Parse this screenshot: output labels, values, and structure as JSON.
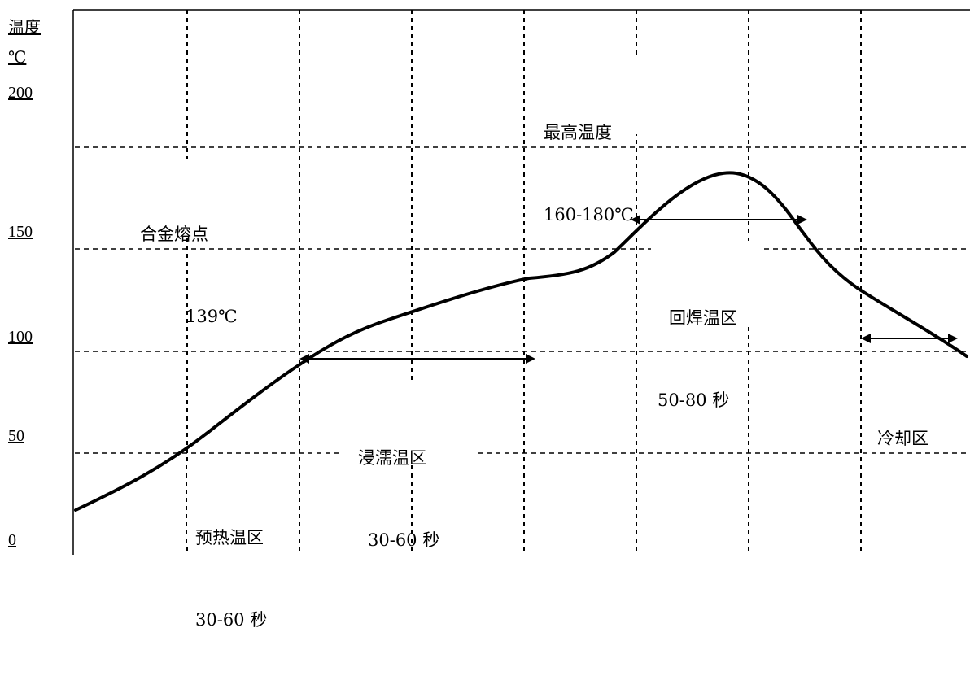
{
  "axis": {
    "title_line1": "温度",
    "title_line2": "℃",
    "ticks": [
      "200",
      "150",
      "100",
      "50",
      "0"
    ]
  },
  "annotations": {
    "peak_title": "最高温度",
    "peak_range": "160-180℃",
    "melt_title": "合金熔点",
    "melt_value": "139℃",
    "reflow_title": "回焊温区",
    "reflow_range": "50-80 秒",
    "soak_title": "浸濡温区",
    "soak_range": "30-60 秒",
    "preheat_title": "预热温区",
    "preheat_range": "30-60 秒",
    "cool_title": "冷却区"
  }
}
